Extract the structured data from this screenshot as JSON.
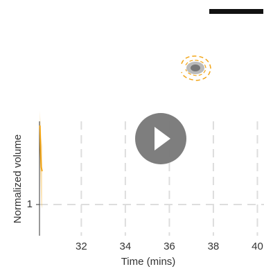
{
  "chart_data": {
    "type": "line",
    "xlabel": "Time (mins)",
    "ylabel": "Normalized volume",
    "x": [
      30.12,
      30.15,
      30.18,
      30.22
    ],
    "series": [
      {
        "values": [
          1.38,
          1.25,
          1.18,
          1.16
        ],
        "color": "#f2a516",
        "lower": [
          1.2,
          1.1,
          1.0,
          0.98
        ],
        "upper": [
          1.45,
          1.38,
          1.32,
          1.28
        ]
      }
    ],
    "xlim": [
      30.1,
      40.3
    ],
    "ylim": [
      0.85,
      1.4
    ],
    "xticks": [
      32,
      34,
      36,
      38,
      40
    ],
    "yticks": [
      1
    ],
    "grid": true
  }
}
